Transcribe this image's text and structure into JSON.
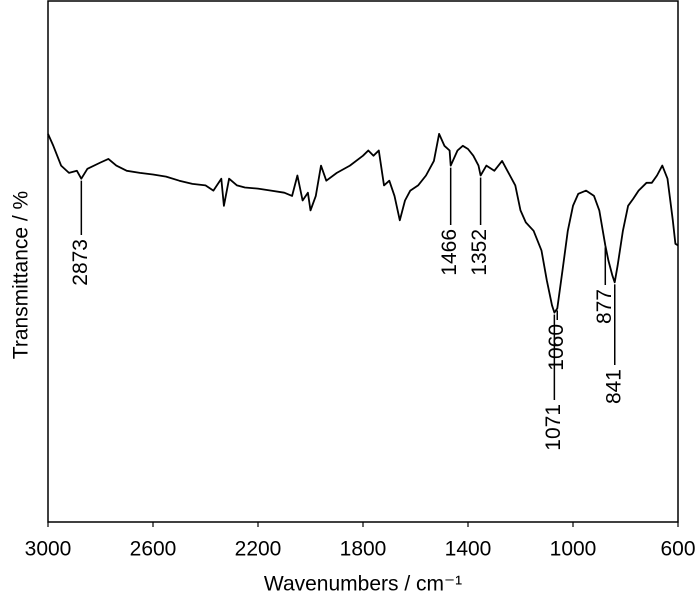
{
  "chart_data": {
    "type": "line",
    "x_label": "Wavenumbers / cm⁻¹",
    "y_label": "Transmittance / %",
    "xlim": [
      3000,
      600
    ],
    "xticks": [
      3000,
      2600,
      2200,
      1800,
      1400,
      1000,
      600
    ],
    "ylim": [
      0,
      100
    ],
    "series": [
      {
        "color": "#000000",
        "x": [
          3000,
          2980,
          2950,
          2920,
          2890,
          2873,
          2850,
          2800,
          2770,
          2740,
          2700,
          2650,
          2600,
          2550,
          2500,
          2450,
          2400,
          2370,
          2340,
          2330,
          2310,
          2280,
          2250,
          2200,
          2150,
          2100,
          2070,
          2050,
          2030,
          2010,
          2000,
          1980,
          1960,
          1940,
          1900,
          1850,
          1800,
          1780,
          1760,
          1740,
          1720,
          1700,
          1680,
          1660,
          1640,
          1620,
          1590,
          1560,
          1530,
          1510,
          1490,
          1470,
          1466,
          1440,
          1420,
          1400,
          1380,
          1360,
          1352,
          1330,
          1300,
          1270,
          1250,
          1220,
          1200,
          1180,
          1150,
          1120,
          1100,
          1080,
          1071,
          1060,
          1040,
          1020,
          1000,
          980,
          950,
          920,
          900,
          880,
          877,
          865,
          850,
          841,
          830,
          810,
          790,
          770,
          750,
          720,
          700,
          680,
          660,
          640,
          620,
          610,
          600
        ],
        "values": [
          74.5,
          72.2,
          68.4,
          67.0,
          67.4,
          65.9,
          67.8,
          69.0,
          69.7,
          68.4,
          67.4,
          67.0,
          66.7,
          66.3,
          65.5,
          64.9,
          64.6,
          63.6,
          65.9,
          60.7,
          65.9,
          64.6,
          64.2,
          64.0,
          63.6,
          63.2,
          62.6,
          66.5,
          61.7,
          63.2,
          59.8,
          62.6,
          68.4,
          65.5,
          67.0,
          68.4,
          70.3,
          71.3,
          70.3,
          71.3,
          64.6,
          65.5,
          62.6,
          57.9,
          61.7,
          63.6,
          64.6,
          66.5,
          69.3,
          74.5,
          72.2,
          71.3,
          68.4,
          71.3,
          72.2,
          71.6,
          70.3,
          68.4,
          66.5,
          68.4,
          67.4,
          69.3,
          67.4,
          64.6,
          59.8,
          57.5,
          55.9,
          52.1,
          46.4,
          41.6,
          40.2,
          41.0,
          48.3,
          55.9,
          60.7,
          63.0,
          63.6,
          62.6,
          59.8,
          54.0,
          53.1,
          50.2,
          47.3,
          46.0,
          49.2,
          55.9,
          60.7,
          62.1,
          63.6,
          65.1,
          65.1,
          66.5,
          68.4,
          65.9,
          57.9,
          53.4,
          53.1
        ]
      }
    ],
    "annotations": [
      2873,
      1466,
      1352,
      1071,
      1060,
      877,
      841
    ]
  }
}
